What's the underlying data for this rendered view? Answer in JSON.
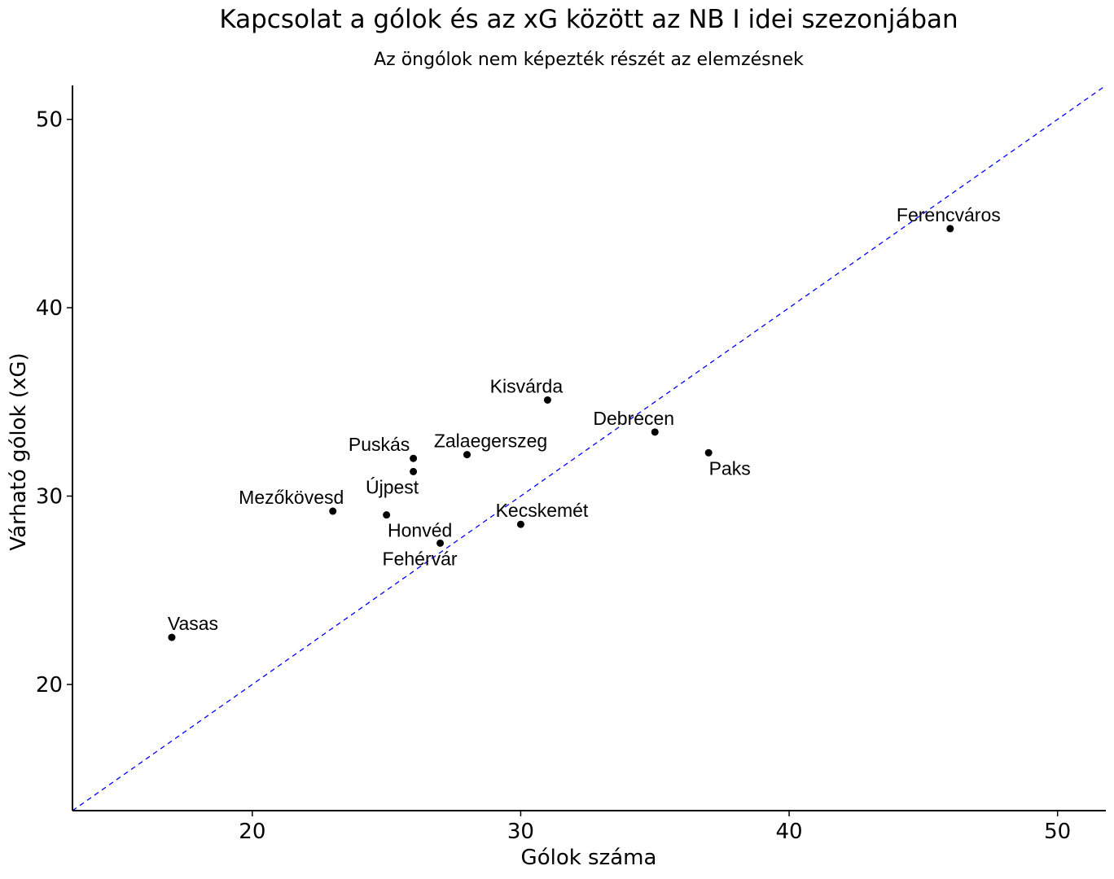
{
  "chart_data": {
    "type": "scatter",
    "title": "Kapcsolat a gólok és az xG között az NB I idei szezonjában",
    "subtitle": "Az öngólok nem képezték részét az elemzésnek",
    "xlabel": "Gólok száma",
    "ylabel": "Várható gólok (xG)",
    "xlim": [
      13.3,
      51.8
    ],
    "ylim": [
      13.3,
      51.8
    ],
    "xticks": [
      20,
      30,
      40,
      50
    ],
    "yticks": [
      20,
      30,
      40,
      50
    ],
    "reference_line": {
      "slope": 1,
      "intercept": 0,
      "style": "dashed",
      "color": "#0000ff"
    },
    "grid": false,
    "points": [
      {
        "label": "Ferencváros",
        "x": 46,
        "y": 44.2
      },
      {
        "label": "Kisvárda",
        "x": 31,
        "y": 35.1
      },
      {
        "label": "Debrecen",
        "x": 35,
        "y": 33.4
      },
      {
        "label": "Paks",
        "x": 37,
        "y": 32.3
      },
      {
        "label": "Zalaegerszeg",
        "x": 28,
        "y": 32.2
      },
      {
        "label": "Puskás",
        "x": 26,
        "y": 32.0
      },
      {
        "label": "Újpest",
        "x": 26,
        "y": 31.3
      },
      {
        "label": "Mezőkövesd",
        "x": 23,
        "y": 29.2
      },
      {
        "label": "Honvéd",
        "x": 25,
        "y": 29.0
      },
      {
        "label": "Kecskemét",
        "x": 30,
        "y": 28.5
      },
      {
        "label": "Fehérvár",
        "x": 27,
        "y": 27.5
      },
      {
        "label": "Vasas",
        "x": 17,
        "y": 22.5
      }
    ]
  }
}
